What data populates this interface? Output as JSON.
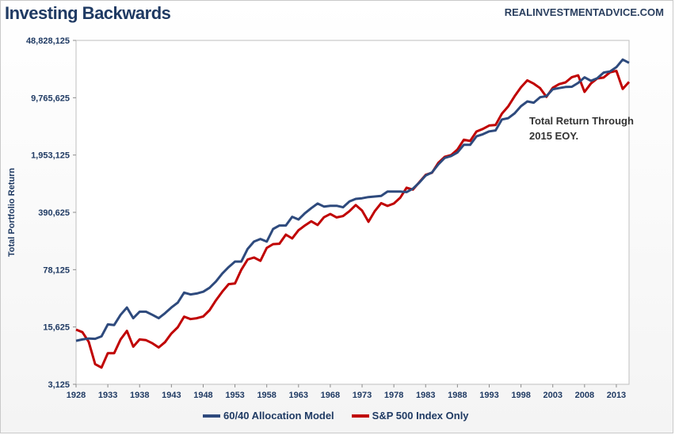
{
  "header": {
    "title": "Investing Backwards",
    "source": "REALINVESTMENTADVICE.COM"
  },
  "annotation": [
    "Total Return Through",
    "2015 EOY."
  ],
  "chart_data": {
    "type": "line",
    "title": "Investing Backwards",
    "xlabel": "",
    "ylabel": "Total Portfolio Return",
    "y_scale": "log",
    "ylim": [
      3125,
      48828125
    ],
    "xlim": [
      1928,
      2015
    ],
    "y_ticks": [
      "3,125",
      "15,625",
      "78,125",
      "390,625",
      "1,953,125",
      "9,765,625",
      "48,828,125"
    ],
    "y_tick_values": [
      3125,
      15625,
      78125,
      390625,
      1953125,
      9765625,
      48828125
    ],
    "x_ticks": [
      "1928",
      "1933",
      "1938",
      "1943",
      "1948",
      "1953",
      "1958",
      "1963",
      "1968",
      "1973",
      "1978",
      "1983",
      "1988",
      "1993",
      "1998",
      "2003",
      "2008",
      "2013"
    ],
    "x": [
      1928,
      1929,
      1930,
      1931,
      1932,
      1933,
      1934,
      1935,
      1936,
      1937,
      1938,
      1939,
      1940,
      1941,
      1942,
      1943,
      1944,
      1945,
      1946,
      1947,
      1948,
      1949,
      1950,
      1951,
      1952,
      1953,
      1954,
      1955,
      1956,
      1957,
      1958,
      1959,
      1960,
      1961,
      1962,
      1963,
      1964,
      1965,
      1966,
      1967,
      1968,
      1969,
      1970,
      1971,
      1972,
      1973,
      1974,
      1975,
      1976,
      1977,
      1978,
      1979,
      1980,
      1981,
      1982,
      1983,
      1984,
      1985,
      1986,
      1987,
      1988,
      1989,
      1990,
      1991,
      1992,
      1993,
      1994,
      1995,
      1996,
      1997,
      1998,
      1999,
      2000,
      2001,
      2002,
      2003,
      2004,
      2005,
      2006,
      2007,
      2008,
      2009,
      2010,
      2011,
      2012,
      2013,
      2014,
      2015
    ],
    "series": [
      {
        "name": "60/40 Allocation Model",
        "color": "#2e4a7d",
        "values": [
          10600,
          11000,
          11300,
          11200,
          12000,
          16800,
          16500,
          22000,
          27000,
          20000,
          24000,
          24000,
          22000,
          20000,
          23000,
          27000,
          31000,
          41000,
          39000,
          40000,
          42000,
          47000,
          56000,
          70000,
          84000,
          98000,
          98000,
          140000,
          172000,
          185000,
          172000,
          245000,
          270000,
          270000,
          345000,
          320000,
          380000,
          440000,
          500000,
          460000,
          470000,
          470000,
          450000,
          530000,
          570000,
          580000,
          600000,
          610000,
          620000,
          700000,
          700000,
          700000,
          690000,
          760000,
          900000,
          1100000,
          1200000,
          1500000,
          1800000,
          1900000,
          2100000,
          2600000,
          2600000,
          3300000,
          3500000,
          3800000,
          3900000,
          5300000,
          5500000,
          6300000,
          7700000,
          8800000,
          8500000,
          9900000,
          10200000,
          12400000,
          12800000,
          13200000,
          13300000,
          14800000,
          17300000,
          15700000,
          16900000,
          19800000,
          20400000,
          23000000,
          28500000,
          26000000
        ]
      },
      {
        "name": "S&P 500 Index Only",
        "color": "#c00000",
        "values": [
          14500,
          13500,
          10300,
          5500,
          5000,
          7500,
          7500,
          11000,
          14000,
          9000,
          11000,
          10800,
          9900,
          8800,
          10200,
          13000,
          15500,
          20900,
          19500,
          20000,
          21000,
          25000,
          33000,
          42000,
          52000,
          53000,
          78000,
          104000,
          110000,
          100000,
          144000,
          160000,
          162000,
          209000,
          188000,
          236000,
          270000,
          304000,
          274000,
          340000,
          373000,
          339000,
          352000,
          403000,
          479000,
          410000,
          300000,
          405000,
          506000,
          468000,
          500000,
          590000,
          780000,
          740000,
          910000,
          1120000,
          1190000,
          1570000,
          1860000,
          1950000,
          2280000,
          3000000,
          2900000,
          3780000,
          4070000,
          4480000,
          4540000,
          6240000,
          7680000,
          10200000,
          13100000,
          15900000,
          14500000,
          12800000,
          10000000,
          12900000,
          14300000,
          15000000,
          17400000,
          18300000,
          11500000,
          14600000,
          16800000,
          17200000,
          19900000,
          20800000,
          12500000,
          15200000
        ]
      }
    ],
    "legend_position": "bottom",
    "grid": false
  }
}
